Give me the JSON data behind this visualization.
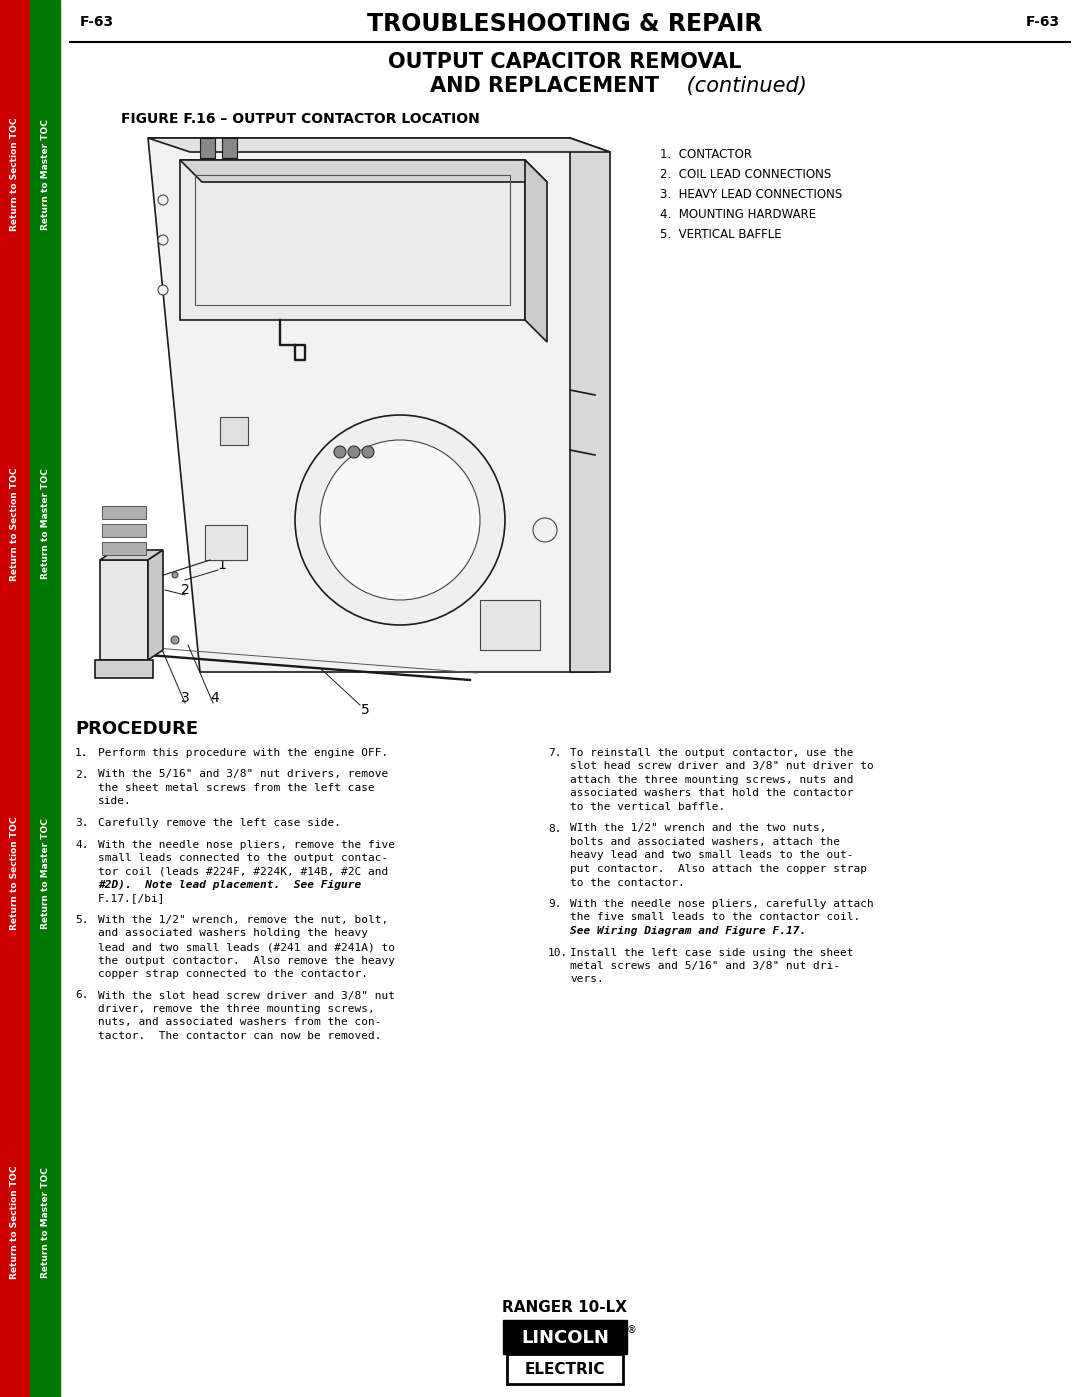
{
  "page_number": "F-63",
  "header_title": "TROUBLESHOOTING & REPAIR",
  "section_title_line1": "OUTPUT CAPACITOR REMOVAL",
  "section_title_line2": "AND REPLACEMENT",
  "section_title_italic": " (continued)",
  "figure_caption": "FIGURE F.16 – OUTPUT CONTACTOR LOCATION",
  "legend_items": [
    "1.  CONTACTOR",
    "2.  COIL LEAD CONNECTIONS",
    "3.  HEAVY LEAD CONNECTIONS",
    "4.  MOUNTING HARDWARE",
    "5.  VERTICAL BAFFLE"
  ],
  "procedure_title": "PROCEDURE",
  "procedure_left": [
    {
      "num": "1.",
      "text": "Perform this procedure with the engine OFF."
    },
    {
      "num": "2.",
      "text": "With the 5/16\" and 3/8\" nut drivers, remove\nthe sheet metal screws from the left case\nside."
    },
    {
      "num": "3.",
      "text": "Carefully remove the left case side."
    },
    {
      "num": "4.",
      "text": "With the needle nose pliers, remove the five\nsmall leads connected to the output contac-\ntor coil (leads #224F, #224K, #14B, #2C and\n#2D).  [b]Note lead placement.[/b]  See [bi]Figure\nF.17.[/bi]"
    },
    {
      "num": "5.",
      "text": "With the 1/2\" wrench, remove the nut, bolt,\nand associated washers holding the heavy\nlead and two small leads (#241 and #241A) to\nthe output contactor.  Also remove the heavy\ncopper strap connected to the contactor."
    },
    {
      "num": "6.",
      "text": "With the slot head screw driver and 3/8\" nut\ndriver, remove the three mounting screws,\nnuts, and associated washers from the con-\ntactor.  The contactor can now be removed."
    }
  ],
  "procedure_right": [
    {
      "num": "7.",
      "text": "To reinstall the output contactor, use the\nslot head screw driver and 3/8\" nut driver to\nattach the three mounting screws, nuts and\nassociated washers that hold the contactor\nto the vertical baffle."
    },
    {
      "num": "8.",
      "text": "WIth the 1/2\" wrench and the two nuts,\nbolts and associated washers, attach the\nheavy lead and two small leads to the out-\nput contactor.  Also attach the copper strap\nto the contactor."
    },
    {
      "num": "9.",
      "text": "With the needle nose pliers, carefully attach\nthe five small leads to the contactor coil.\nSee Wiring Diagram and [bi]Figure F.17.[/bi]"
    },
    {
      "num": "10.",
      "text": "Install the left case side using the sheet\nmetal screws and 5/16\" and 3/8\" nut dri-\nvers."
    }
  ],
  "footer_model": "RANGER 10-LX",
  "sidebar_red_text": "Return to Section TOC",
  "sidebar_green_text": "Return to Master TOC",
  "bg_color": "#ffffff",
  "text_color": "#000000",
  "sidebar_red_color": "#cc0000",
  "sidebar_green_color": "#007700"
}
